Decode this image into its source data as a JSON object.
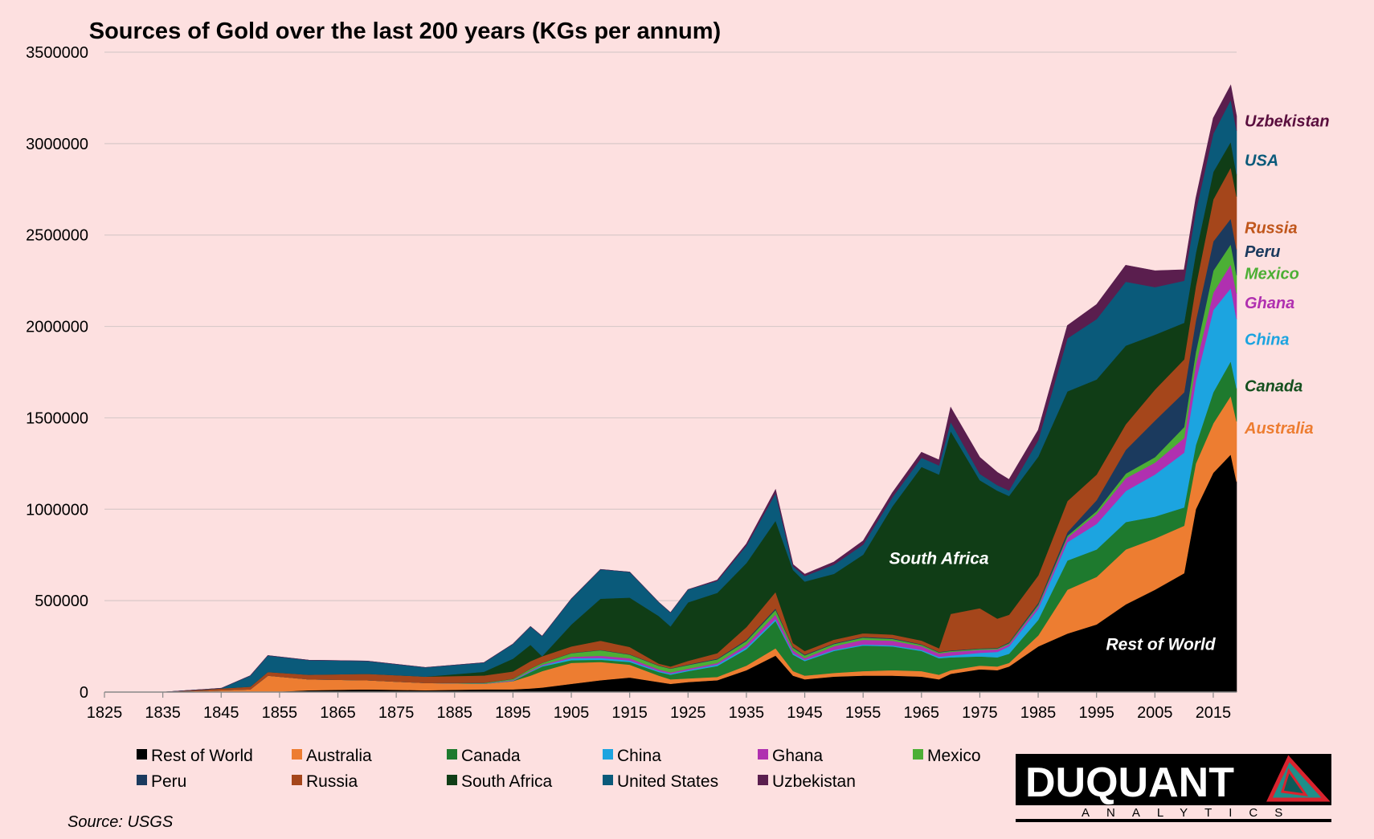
{
  "chart_data": {
    "type": "area",
    "stacked": true,
    "title": "Sources of Gold over the last 200 years (KGs per annum)",
    "xlabel": "",
    "ylabel": "",
    "xlim": [
      1825,
      2019
    ],
    "ylim": [
      0,
      3500000
    ],
    "x_ticks": [
      1825,
      1835,
      1845,
      1855,
      1865,
      1875,
      1885,
      1895,
      1905,
      1915,
      1925,
      1935,
      1945,
      1955,
      1965,
      1975,
      1985,
      1995,
      2005,
      2015
    ],
    "y_ticks": [
      0,
      500000,
      1000000,
      1500000,
      2000000,
      2500000,
      3000000,
      3500000
    ],
    "y_tick_labels": [
      "0",
      "500000",
      "1000000",
      "1500000",
      "2000000",
      "2500000",
      "3000000",
      "3500000"
    ],
    "grid": "horizontal",
    "legend_position": "bottom",
    "source": "Source: USGS",
    "x": [
      1825,
      1835,
      1845,
      1850,
      1853,
      1860,
      1870,
      1880,
      1890,
      1895,
      1898,
      1900,
      1905,
      1910,
      1915,
      1920,
      1922,
      1925,
      1930,
      1935,
      1940,
      1943,
      1945,
      1950,
      1955,
      1960,
      1965,
      1968,
      1970,
      1975,
      1978,
      1980,
      1985,
      1990,
      1995,
      2000,
      2005,
      2010,
      2012,
      2015,
      2018,
      2019
    ],
    "series": [
      {
        "name": "Rest of World",
        "color": "#000000",
        "values": [
          0,
          0,
          0,
          0,
          0,
          10000,
          15000,
          10000,
          15000,
          15000,
          20000,
          25000,
          45000,
          65000,
          80000,
          55000,
          45000,
          55000,
          65000,
          120000,
          200000,
          90000,
          70000,
          85000,
          90000,
          90000,
          85000,
          70000,
          100000,
          125000,
          120000,
          140000,
          250000,
          320000,
          370000,
          480000,
          560000,
          650000,
          1000000,
          1200000,
          1300000,
          1150000
        ]
      },
      {
        "name": "Australia",
        "color": "#ed7d31",
        "values": [
          0,
          0,
          10000,
          15000,
          90000,
          60000,
          50000,
          40000,
          30000,
          45000,
          70000,
          90000,
          115000,
          100000,
          70000,
          35000,
          25000,
          20000,
          18000,
          25000,
          40000,
          25000,
          20000,
          20000,
          25000,
          30000,
          30000,
          25000,
          20000,
          20000,
          20000,
          20000,
          60000,
          240000,
          260000,
          300000,
          280000,
          260000,
          250000,
          270000,
          320000,
          330000
        ]
      },
      {
        "name": "Canada",
        "color": "#1e7a2e",
        "values": [
          0,
          0,
          0,
          0,
          0,
          0,
          0,
          0,
          0,
          1000,
          20000,
          25000,
          15000,
          12000,
          15000,
          20000,
          25000,
          40000,
          60000,
          90000,
          150000,
          90000,
          80000,
          120000,
          140000,
          130000,
          110000,
          90000,
          70000,
          50000,
          50000,
          50000,
          85000,
          160000,
          150000,
          150000,
          120000,
          100000,
          100000,
          170000,
          190000,
          180000
        ]
      },
      {
        "name": "China",
        "color": "#1ca4e0",
        "values": [
          0,
          0,
          0,
          0,
          0,
          0,
          0,
          0,
          1000,
          2000,
          3000,
          5000,
          10000,
          10000,
          8000,
          6000,
          6000,
          6000,
          8000,
          10000,
          10000,
          8000,
          6000,
          6000,
          6000,
          6000,
          6000,
          8000,
          10000,
          20000,
          30000,
          40000,
          60000,
          100000,
          140000,
          170000,
          230000,
          300000,
          350000,
          450000,
          400000,
          380000
        ]
      },
      {
        "name": "Ghana",
        "color": "#b030b0",
        "values": [
          0,
          0,
          0,
          0,
          0,
          0,
          0,
          0,
          1000,
          3000,
          5000,
          5000,
          8000,
          12000,
          12000,
          8000,
          7000,
          7000,
          8000,
          15000,
          25000,
          15000,
          10000,
          20000,
          25000,
          25000,
          20000,
          18000,
          20000,
          16000,
          14000,
          12000,
          15000,
          25000,
          55000,
          70000,
          65000,
          80000,
          90000,
          95000,
          130000,
          140000
        ]
      },
      {
        "name": "Mexico",
        "color": "#4caf35",
        "values": [
          0,
          0,
          0,
          0,
          0,
          0,
          0,
          0,
          3000,
          6000,
          10000,
          10000,
          20000,
          30000,
          20000,
          20000,
          20000,
          20000,
          20000,
          20000,
          25000,
          15000,
          15000,
          12000,
          12000,
          10000,
          8000,
          6000,
          5000,
          5000,
          5000,
          6000,
          8000,
          10000,
          15000,
          25000,
          30000,
          60000,
          70000,
          120000,
          110000,
          100000
        ]
      },
      {
        "name": "Peru",
        "color": "#1b3a5e",
        "values": [
          0,
          0,
          0,
          0,
          0,
          0,
          0,
          0,
          1000,
          1000,
          1000,
          1000,
          2000,
          2000,
          2000,
          2000,
          2000,
          3000,
          4000,
          6000,
          8000,
          5000,
          4000,
          4000,
          4000,
          4000,
          3000,
          3000,
          3000,
          3000,
          3000,
          5000,
          10000,
          20000,
          60000,
          130000,
          200000,
          190000,
          170000,
          160000,
          140000,
          140000
        ]
      },
      {
        "name": "Russia",
        "color": "#a5461b",
        "values": [
          0,
          0,
          10000,
          15000,
          20000,
          25000,
          35000,
          35000,
          40000,
          40000,
          40000,
          35000,
          35000,
          50000,
          40000,
          10000,
          10000,
          20000,
          30000,
          70000,
          90000,
          20000,
          20000,
          20000,
          20000,
          20000,
          20000,
          20000,
          200000,
          220000,
          160000,
          150000,
          150000,
          170000,
          140000,
          140000,
          170000,
          180000,
          190000,
          230000,
          280000,
          290000
        ]
      },
      {
        "name": "South Africa",
        "color": "#103d16",
        "values": [
          0,
          0,
          0,
          0,
          0,
          0,
          0,
          0,
          20000,
          70000,
          90000,
          0,
          120000,
          230000,
          270000,
          260000,
          220000,
          320000,
          330000,
          350000,
          390000,
          400000,
          380000,
          360000,
          430000,
          700000,
          950000,
          950000,
          1000000,
          700000,
          700000,
          650000,
          650000,
          600000,
          520000,
          430000,
          300000,
          200000,
          180000,
          150000,
          140000,
          120000
        ]
      },
      {
        "name": "United States",
        "color": "#0a5a7a",
        "values": [
          0,
          0,
          1000,
          60000,
          90000,
          80000,
          70000,
          50000,
          50000,
          80000,
          100000,
          110000,
          140000,
          160000,
          140000,
          75000,
          75000,
          70000,
          65000,
          95000,
          150000,
          20000,
          30000,
          50000,
          55000,
          50000,
          50000,
          50000,
          50000,
          35000,
          30000,
          30000,
          90000,
          290000,
          330000,
          350000,
          260000,
          230000,
          230000,
          210000,
          230000,
          240000
        ]
      },
      {
        "name": "Uzbekistan",
        "color": "#5a1e4e",
        "values": [
          0,
          0,
          0,
          0,
          0,
          0,
          0,
          0,
          0,
          0,
          0,
          0,
          0,
          0,
          0,
          0,
          0,
          0,
          5000,
          10000,
          20000,
          10000,
          10000,
          15000,
          20000,
          25000,
          30000,
          30000,
          80000,
          90000,
          70000,
          60000,
          55000,
          70000,
          80000,
          90000,
          90000,
          60000,
          70000,
          85000,
          80000,
          80000
        ]
      }
    ],
    "series_labels": [
      {
        "series": "Uzbekistan",
        "text": "Uzbekistan",
        "color": "#5a0e3e",
        "y": 3125000
      },
      {
        "series": "United States",
        "text": "USA",
        "color": "#0a5a7a",
        "y": 2910000
      },
      {
        "series": "Russia",
        "text": "Russia",
        "color": "#c0561b",
        "y": 2540000
      },
      {
        "series": "Peru",
        "text": "Peru",
        "color": "#1b3a5e",
        "y": 2410000
      },
      {
        "series": "Mexico",
        "text": "Mexico",
        "color": "#4caf35",
        "y": 2290000
      },
      {
        "series": "Ghana",
        "text": "Ghana",
        "color": "#b030b0",
        "y": 2130000
      },
      {
        "series": "China",
        "text": "China",
        "color": "#1ca4e0",
        "y": 1930000
      },
      {
        "series": "Canada",
        "text": "Canada",
        "color": "#14501e",
        "y": 1675000
      },
      {
        "series": "Australia",
        "text": "Australia",
        "color": "#ed7d31",
        "y": 1445000
      }
    ],
    "annotations": [
      {
        "text": "South Africa",
        "x": 1968,
        "y": 700000
      },
      {
        "text": "Rest of World",
        "x": 2006,
        "y": 230000
      }
    ]
  },
  "logo": {
    "main": "DUQUANT",
    "sub": "ANALYTICS",
    "colors": {
      "bg": "#000000",
      "accent": "#d9232e",
      "teal": "#1e8f8a"
    }
  }
}
